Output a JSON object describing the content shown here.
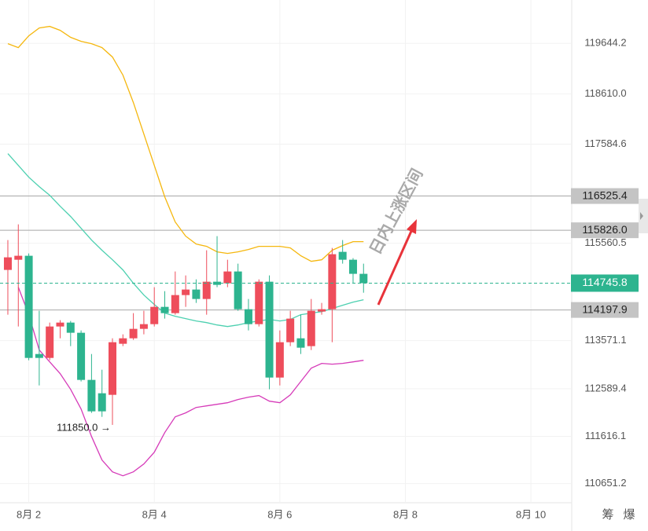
{
  "chart_data": {
    "type": "candlestick",
    "ylim": [
      110260,
      120530
    ],
    "yticks": [
      119644.2,
      {
        "value": 118610.0,
        "label": "118610.0"
      },
      117584.6,
      115560.5,
      113571.1,
      112589.4,
      111616.1,
      110651.2
    ],
    "xlim": [
      -0.75,
      53.9
    ],
    "xticks": [
      {
        "value": 2,
        "label": "8月 2"
      },
      {
        "value": 14,
        "label": "8月 4"
      },
      {
        "value": 26,
        "label": "8月 6"
      },
      {
        "value": 38,
        "label": "8月 8"
      },
      {
        "value": 50,
        "label": "8月 10"
      }
    ],
    "grid": true,
    "up_color": "#ee4d5b",
    "down_color": "#2db48f",
    "open": [
      115016,
      115224,
      115305,
      113298,
      113218,
      113860,
      113940,
      113732,
      112769,
      112496,
      112464,
      113507,
      113619,
      113812,
      113908,
      114261,
      114133,
      114502,
      114615,
      114422,
      114775,
      114743,
      114984,
      114213,
      113908,
      114775,
      112817,
      113539,
      113619,
      113459,
      114165,
      114213,
      115385,
      115224,
      114936
    ],
    "high": [
      115626,
      115947,
      115353,
      114181,
      113940,
      113989,
      113973,
      113780,
      113298,
      112977,
      113619,
      113700,
      114133,
      114181,
      114663,
      114582,
      114984,
      114903,
      114823,
      115417,
      115706,
      115224,
      115144,
      114422,
      114823,
      114903,
      113780,
      114181,
      114101,
      114422,
      114342,
      115465,
      115626,
      115257,
      115144
    ],
    "low": [
      114101,
      113860,
      113170,
      112656,
      113170,
      113619,
      113459,
      112737,
      112095,
      112014,
      111850,
      113459,
      113587,
      113700,
      113860,
      114021,
      114101,
      114261,
      114342,
      114101,
      114663,
      114663,
      114181,
      113780,
      113860,
      112576,
      112656,
      113459,
      113298,
      113379,
      114101,
      113539,
      115144,
      114743,
      114550
    ],
    "close": [
      115273,
      115305,
      113218,
      113218,
      113860,
      113940,
      113732,
      112769,
      112127,
      112127,
      113539,
      113619,
      113812,
      113908,
      114261,
      114133,
      114502,
      114615,
      114422,
      114775,
      114711,
      114984,
      114213,
      113908,
      114775,
      112817,
      113539,
      114021,
      113427,
      114181,
      114213,
      115337,
      115224,
      114936,
      114745.8
    ],
    "bands": [
      {
        "color": "#f5b70e",
        "values": [
          119638,
          119558,
          119799,
          119959,
          119991,
          119911,
          119767,
          119686,
          119638,
          119558,
          119365,
          118996,
          118434,
          117792,
          117150,
          116508,
          115995,
          115706,
          115545,
          115497,
          115385,
          115353,
          115385,
          115433,
          115497,
          115497,
          115497,
          115465,
          115305,
          115192,
          115224,
          115417,
          115513,
          115594,
          115594
        ]
      },
      {
        "color": "#4dd0b0",
        "values": [
          117391,
          117150,
          116910,
          116717,
          116541,
          116316,
          116107,
          115866,
          115626,
          115417,
          115224,
          115016,
          114743,
          114502,
          114310,
          114133,
          114069,
          114021,
          113973,
          113940,
          113892,
          113860,
          113892,
          113940,
          113973,
          114005,
          113973,
          114005,
          114101,
          114133,
          114165,
          114229,
          114294,
          114358,
          114406
        ]
      },
      {
        "color": "#d63bb9",
        "values": [
          null,
          114663,
          114101,
          113379,
          113138,
          112897,
          112576,
          112175,
          111613,
          111132,
          110891,
          110811,
          110891,
          111051,
          111292,
          111693,
          112014,
          112095,
          112207,
          112239,
          112271,
          112303,
          112368,
          112416,
          112448,
          112335,
          112303,
          112464,
          112737,
          113010,
          113106,
          113090,
          113106,
          113138,
          113170
        ]
      }
    ],
    "levels": [
      116525.4,
      {
        "value": 115826.0,
        "label": "115826.0"
      },
      114197.9
    ],
    "last_price": 114745.8,
    "low_annotation": "111850.0 →",
    "annotation": "日内上涨区间"
  },
  "toolbar": [
    "筹",
    "爆"
  ]
}
